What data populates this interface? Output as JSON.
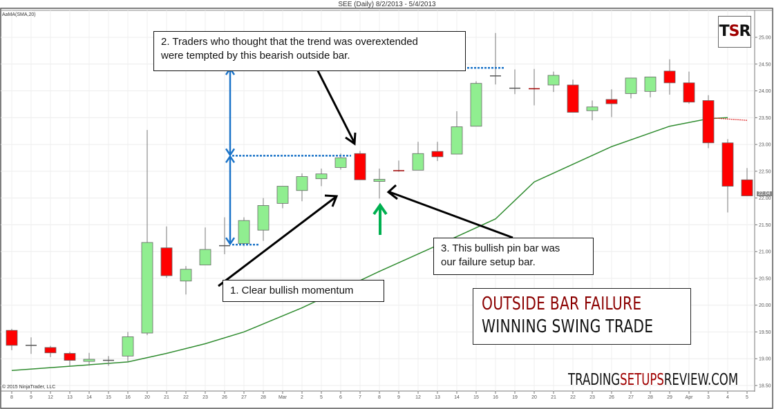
{
  "header": {
    "title": "SEE (Daily)  8/2/2013 - 5/4/2013",
    "indicator_label": "AaMA(SMA,20)",
    "copyright": "© 2015 NinjaTrader, LLC"
  },
  "logo": {
    "text_black_1": "T",
    "text_red": "S",
    "text_black_2": "R"
  },
  "annotations": {
    "note_1": "1. Clear bullish  momentum",
    "note_2_line1": "2. Traders who thought that the trend was overextended",
    "note_2_line2": "were tempted by this bearish outside bar.",
    "note_3_line1": "3. This bullish  pin bar was",
    "note_3_line2": "our failure setup bar."
  },
  "headline": {
    "line1": "OUTSIDE BAR FAILURE",
    "line2": "WINNING SWING TRADE"
  },
  "brand": {
    "part1": "TRADING",
    "part2": "SETUPS",
    "part3": "REVIEW.COM"
  },
  "last_price_tag": "22.04",
  "colors": {
    "bull": "#90ee90",
    "bear": "#ff0000",
    "sma": "#2e8b2e",
    "measure": "#1a73c8",
    "accent_red": "#8b0000",
    "arrow_green": "#00b050"
  },
  "chart_data": {
    "type": "candlestick",
    "title": "SEE (Daily)  8/2/2013 - 5/4/2013",
    "xlabel": "",
    "ylabel": "",
    "ylim": [
      18.5,
      25.0
    ],
    "yticks": [
      "25.00",
      "24.50",
      "24.00",
      "23.50",
      "23.00",
      "22.50",
      "22.00",
      "21.50",
      "21.00",
      "20.50",
      "20.00",
      "19.50",
      "19.00",
      "18.50"
    ],
    "categories": [
      "8",
      "9",
      "12",
      "13",
      "14",
      "15",
      "16",
      "20",
      "21",
      "22",
      "23",
      "26",
      "27",
      "28",
      "Mar",
      "2",
      "5",
      "6",
      "7",
      "8",
      "9",
      "12",
      "13",
      "14",
      "15",
      "16",
      "19",
      "20",
      "21",
      "22",
      "23",
      "26",
      "27",
      "28",
      "29",
      "Apr",
      "3",
      "4",
      "5"
    ],
    "candles": [
      {
        "o": 19.53,
        "h": 19.56,
        "l": 19.16,
        "c": 19.25
      },
      {
        "o": 19.24,
        "h": 19.4,
        "l": 19.09,
        "c": 19.25
      },
      {
        "o": 19.21,
        "h": 19.24,
        "l": 19.03,
        "c": 19.11
      },
      {
        "o": 19.1,
        "h": 19.13,
        "l": 18.87,
        "c": 18.97
      },
      {
        "o": 18.95,
        "h": 19.11,
        "l": 18.87,
        "c": 18.99
      },
      {
        "o": 18.95,
        "h": 19.05,
        "l": 18.87,
        "c": 18.97
      },
      {
        "o": 19.05,
        "h": 19.5,
        "l": 18.95,
        "c": 19.41
      },
      {
        "o": 19.48,
        "h": 23.27,
        "l": 19.44,
        "c": 21.17
      },
      {
        "o": 21.07,
        "h": 21.47,
        "l": 20.51,
        "c": 20.55
      },
      {
        "o": 20.45,
        "h": 20.73,
        "l": 20.2,
        "c": 20.67
      },
      {
        "o": 20.75,
        "h": 21.45,
        "l": 20.75,
        "c": 21.04
      },
      {
        "o": 21.1,
        "h": 21.64,
        "l": 20.95,
        "c": 21.11
      },
      {
        "o": 21.15,
        "h": 21.64,
        "l": 21.1,
        "c": 21.58
      },
      {
        "o": 21.4,
        "h": 22.0,
        "l": 21.2,
        "c": 21.86
      },
      {
        "o": 21.9,
        "h": 22.22,
        "l": 21.81,
        "c": 22.22
      },
      {
        "o": 22.14,
        "h": 22.46,
        "l": 21.94,
        "c": 22.4
      },
      {
        "o": 22.36,
        "h": 22.55,
        "l": 22.22,
        "c": 22.45
      },
      {
        "o": 22.57,
        "h": 22.83,
        "l": 22.53,
        "c": 22.75
      },
      {
        "o": 22.83,
        "h": 22.88,
        "l": 22.34,
        "c": 22.34
      },
      {
        "o": 22.31,
        "h": 22.55,
        "l": 21.99,
        "c": 22.35
      },
      {
        "o": 22.51,
        "h": 22.7,
        "l": 22.49,
        "c": 22.5
      },
      {
        "o": 22.52,
        "h": 23.05,
        "l": 22.52,
        "c": 22.83
      },
      {
        "o": 22.87,
        "h": 23.05,
        "l": 22.69,
        "c": 22.77
      },
      {
        "o": 22.82,
        "h": 23.62,
        "l": 22.82,
        "c": 23.33
      },
      {
        "o": 23.34,
        "h": 24.18,
        "l": 23.34,
        "c": 24.14
      },
      {
        "o": 24.27,
        "h": 25.08,
        "l": 24.12,
        "c": 24.28
      },
      {
        "o": 24.04,
        "h": 24.4,
        "l": 23.94,
        "c": 24.05
      },
      {
        "o": 24.04,
        "h": 24.41,
        "l": 23.73,
        "c": 24.02
      },
      {
        "o": 24.11,
        "h": 24.36,
        "l": 23.98,
        "c": 24.29
      },
      {
        "o": 24.11,
        "h": 24.21,
        "l": 23.6,
        "c": 23.6
      },
      {
        "o": 23.63,
        "h": 23.82,
        "l": 23.45,
        "c": 23.7
      },
      {
        "o": 23.84,
        "h": 24.03,
        "l": 23.51,
        "c": 23.76
      },
      {
        "o": 23.95,
        "h": 24.24,
        "l": 23.86,
        "c": 24.24
      },
      {
        "o": 23.99,
        "h": 24.26,
        "l": 23.88,
        "c": 24.26
      },
      {
        "o": 24.37,
        "h": 24.59,
        "l": 23.93,
        "c": 24.15
      },
      {
        "o": 24.15,
        "h": 24.36,
        "l": 23.76,
        "c": 23.79
      },
      {
        "o": 23.82,
        "h": 23.92,
        "l": 22.93,
        "c": 23.03
      },
      {
        "o": 23.03,
        "h": 23.1,
        "l": 21.73,
        "c": 22.22
      },
      {
        "o": 22.34,
        "h": 22.56,
        "l": 22.04,
        "c": 22.04
      }
    ],
    "series": [
      {
        "name": "SMA(20)",
        "type": "line",
        "values_at_index": [
          [
            0,
            18.78
          ],
          [
            6,
            18.94
          ],
          [
            8,
            19.1
          ],
          [
            10,
            19.28
          ],
          [
            12,
            19.5
          ],
          [
            15,
            19.95
          ],
          [
            19,
            20.63
          ],
          [
            23,
            21.28
          ],
          [
            25,
            21.61
          ],
          [
            27,
            22.3
          ],
          [
            31,
            22.96
          ],
          [
            34,
            23.34
          ],
          [
            36,
            23.48
          ],
          [
            37,
            23.5
          ]
        ]
      },
      {
        "name": "SMA(20) projection",
        "type": "dotted-line",
        "values_at_index": [
          [
            36,
            23.5
          ],
          [
            38,
            23.45
          ]
        ]
      }
    ],
    "measurements": [
      {
        "label": "swing low to outside-bar high",
        "from": 21.13,
        "to": 22.79
      },
      {
        "label": "outside-bar high to target",
        "from": 22.79,
        "to": 24.43
      }
    ],
    "legend": "AaMA(SMA,20)",
    "grid": true
  }
}
